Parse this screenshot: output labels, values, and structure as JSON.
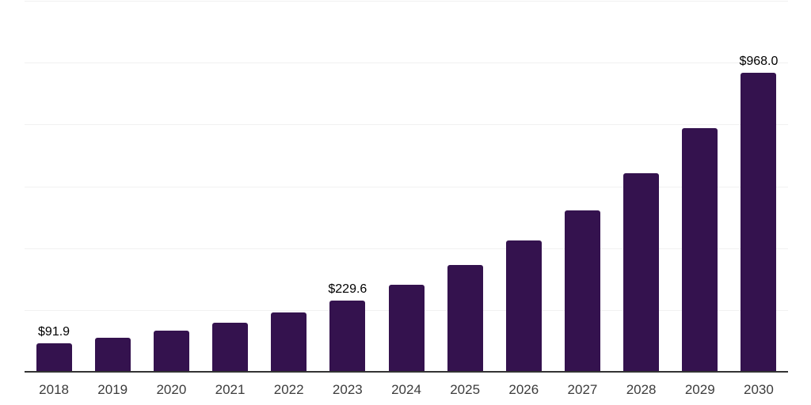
{
  "chart_data": {
    "type": "bar",
    "title": "",
    "categories": [
      "2018",
      "2019",
      "2020",
      "2021",
      "2022",
      "2023",
      "2024",
      "2025",
      "2026",
      "2027",
      "2028",
      "2029",
      "2030"
    ],
    "values": [
      91.9,
      110.4,
      132.6,
      159.2,
      191.2,
      229.6,
      282.0,
      346.4,
      425.4,
      522.4,
      641.6,
      788.0,
      968.0
    ],
    "bar_labels": [
      "$91.9",
      "",
      "",
      "",
      "",
      "$229.6",
      "",
      "",
      "",
      "",
      "",
      "",
      "$968.0"
    ],
    "ylim": [
      0,
      1200
    ],
    "grid_step": 200,
    "grid": true,
    "y_axis_tick_labels_visible": false,
    "legend_position": "none",
    "colors": {
      "bar": "#34124E",
      "axis": "#333333",
      "grid": "#f1f1f1",
      "value_label": "#000000",
      "tick_label": "#3c3c3c"
    }
  }
}
